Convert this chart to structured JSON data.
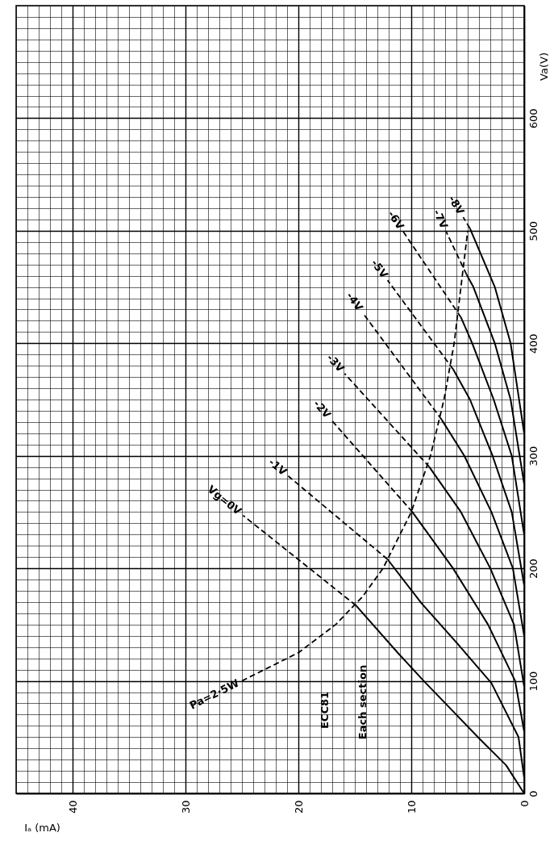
{
  "chart_data": {
    "type": "line",
    "xlabel": "Iₐ (mA)",
    "ylabel": "Va(V)",
    "xlim": [
      45,
      0
    ],
    "ylim": [
      0,
      700
    ],
    "yticks": [
      0,
      {
        "value": 10,
        "label": null
      },
      {
        "value": 20,
        "label": null
      },
      {
        "value": 30,
        "label": null
      },
      {
        "value": 40,
        "label": null
      },
      {
        "value": 50,
        "label": null
      },
      {
        "value": 60,
        "label": null
      },
      {
        "value": 70,
        "label": null
      },
      {
        "value": 80,
        "label": null
      },
      {
        "value": 90,
        "label": null
      },
      100,
      {
        "value": 110,
        "label": null
      },
      {
        "value": 120,
        "label": null
      },
      {
        "value": 130,
        "label": null
      },
      {
        "value": 140,
        "label": null
      },
      {
        "value": 150,
        "label": null
      },
      {
        "value": 160,
        "label": null
      },
      {
        "value": 170,
        "label": null
      },
      {
        "value": 180,
        "label": null
      },
      {
        "value": 190,
        "label": null
      },
      200,
      {
        "value": 210,
        "label": null
      },
      {
        "value": 220,
        "label": null
      },
      {
        "value": 230,
        "label": null
      },
      {
        "value": 240,
        "label": null
      },
      {
        "value": 250,
        "label": null
      },
      {
        "value": 260,
        "label": null
      },
      {
        "value": 270,
        "label": null
      },
      {
        "value": 280,
        "label": null
      },
      {
        "value": 290,
        "label": null
      },
      300,
      {
        "value": 310,
        "label": null
      },
      {
        "value": 320,
        "label": null
      },
      {
        "value": 330,
        "label": null
      },
      {
        "value": 340,
        "label": null
      },
      {
        "value": 350,
        "label": null
      },
      {
        "value": 360,
        "label": null
      },
      {
        "value": 370,
        "label": null
      },
      {
        "value": 380,
        "label": null
      },
      {
        "value": 390,
        "label": null
      },
      400,
      {
        "value": 410,
        "label": null
      },
      {
        "value": 420,
        "label": null
      },
      {
        "value": 430,
        "label": null
      },
      {
        "value": 440,
        "label": null
      },
      {
        "value": 450,
        "label": null
      },
      {
        "value": 460,
        "label": null
      },
      {
        "value": 470,
        "label": null
      },
      {
        "value": 480,
        "label": null
      },
      {
        "value": 490,
        "label": null
      },
      500,
      {
        "value": 510,
        "label": null
      },
      {
        "value": 520,
        "label": null
      },
      {
        "value": 530,
        "label": null
      },
      {
        "value": 540,
        "label": null
      },
      {
        "value": 550,
        "label": null
      },
      {
        "value": 560,
        "label": null
      },
      {
        "value": 570,
        "label": null
      },
      {
        "value": 580,
        "label": null
      },
      {
        "value": 590,
        "label": null
      },
      600,
      {
        "value": 610,
        "label": null
      },
      {
        "value": 620,
        "label": null
      },
      {
        "value": 630,
        "label": null
      },
      {
        "value": 640,
        "label": null
      },
      {
        "value": 650,
        "label": null
      },
      {
        "value": 660,
        "label": null
      },
      {
        "value": 670,
        "label": null
      },
      {
        "value": 680,
        "label": null
      },
      {
        "value": 690,
        "label": null
      },
      {
        "value": 700,
        "label": null
      }
    ],
    "xticks": [
      {
        "value": 45,
        "label": null
      },
      {
        "value": 44,
        "label": null
      },
      {
        "value": 43,
        "label": null
      },
      {
        "value": 42,
        "label": null
      },
      {
        "value": 41,
        "label": null
      },
      40,
      {
        "value": 39,
        "label": null
      },
      {
        "value": 38,
        "label": null
      },
      {
        "value": 37,
        "label": null
      },
      {
        "value": 36,
        "label": null
      },
      {
        "value": 35,
        "label": null
      },
      {
        "value": 34,
        "label": null
      },
      {
        "value": 33,
        "label": null
      },
      {
        "value": 32,
        "label": null
      },
      {
        "value": 31,
        "label": null
      },
      30,
      {
        "value": 29,
        "label": null
      },
      {
        "value": 28,
        "label": null
      },
      {
        "value": 27,
        "label": null
      },
      {
        "value": 26,
        "label": null
      },
      {
        "value": 25,
        "label": null
      },
      {
        "value": 24,
        "label": null
      },
      {
        "value": 23,
        "label": null
      },
      {
        "value": 22,
        "label": null
      },
      {
        "value": 21,
        "label": null
      },
      20,
      {
        "value": 19,
        "label": null
      },
      {
        "value": 18,
        "label": null
      },
      {
        "value": 17,
        "label": null
      },
      {
        "value": 16,
        "label": null
      },
      {
        "value": 15,
        "label": null
      },
      {
        "value": 14,
        "label": null
      },
      {
        "value": 13,
        "label": null
      },
      {
        "value": 12,
        "label": null
      },
      {
        "value": 11,
        "label": null
      },
      10,
      {
        "value": 9,
        "label": null
      },
      {
        "value": 8,
        "label": null
      },
      {
        "value": 7,
        "label": null
      },
      {
        "value": 6,
        "label": null
      },
      {
        "value": 5,
        "label": null
      },
      {
        "value": 4,
        "label": null
      },
      {
        "value": 3,
        "label": null
      },
      {
        "value": 2,
        "label": null
      },
      {
        "value": 1,
        "label": null
      },
      0
    ],
    "grid": true,
    "annotations": [
      "ECC81",
      "Each section"
    ],
    "series": [
      {
        "color": "#000000",
        "line_style": "solid",
        "x": [
          0,
          1.6,
          4.1,
          6.5,
          8.9,
          11.2,
          13.4,
          14.9
        ],
        "values": [
          0,
          25,
          50,
          75,
          100,
          125,
          150,
          167
        ]
      },
      {
        "name": "Vg=0V",
        "color": "#000000",
        "line_style": "dashed",
        "x": [
          14.9,
          24.9
        ],
        "values": [
          167,
          247
        ]
      },
      {
        "color": "#000000",
        "line_style": "solid",
        "x": [
          0,
          0.5,
          2.9,
          5.9,
          9.1,
          12.1
        ],
        "values": [
          14,
          50,
          98,
          133,
          169,
          208
        ]
      },
      {
        "name": "-1V",
        "color": "#000000",
        "line_style": "dashed",
        "x": [
          12.1,
          20.9
        ],
        "values": [
          208,
          282
        ]
      },
      {
        "color": "#000000",
        "line_style": "solid",
        "x": [
          0,
          0.8,
          3.2,
          6.3,
          9.9
        ],
        "values": [
          55,
          100,
          150,
          200,
          250
        ]
      },
      {
        "name": "-2V",
        "color": "#000000",
        "line_style": "dashed",
        "x": [
          9.9,
          17.1
        ],
        "values": [
          250,
          332
        ]
      },
      {
        "color": "#000000",
        "line_style": "solid",
        "x": [
          0,
          0.9,
          3.0,
          5.6,
          8.4
        ],
        "values": [
          95,
          150,
          200,
          250,
          290
        ]
      },
      {
        "name": "-3V",
        "color": "#000000",
        "line_style": "dashed",
        "x": [
          8.4,
          15.9
        ],
        "values": [
          290,
          373
        ]
      },
      {
        "color": "#000000",
        "line_style": "solid",
        "x": [
          0,
          1.0,
          2.9,
          5.3,
          7.3
        ],
        "values": [
          140,
          200,
          250,
          300,
          332
        ]
      },
      {
        "name": "-4V",
        "color": "#000000",
        "line_style": "dashed",
        "x": [
          7.3,
          14.3
        ],
        "values": [
          332,
          427
        ]
      },
      {
        "color": "#000000",
        "line_style": "solid",
        "x": [
          0,
          1.1,
          2.8,
          4.8,
          6.3
        ],
        "values": [
          185,
          250,
          300,
          350,
          377
        ]
      },
      {
        "name": "-5V",
        "color": "#000000",
        "line_style": "dashed",
        "x": [
          6.3,
          12.1
        ],
        "values": [
          377,
          456
        ]
      },
      {
        "color": "#000000",
        "line_style": "solid",
        "x": [
          0,
          1.1,
          2.7,
          4.6,
          5.6
        ],
        "values": [
          230,
          300,
          350,
          400,
          423
        ]
      },
      {
        "name": "-6V",
        "color": "#000000",
        "line_style": "dashed",
        "x": [
          5.6,
          10.7
        ],
        "values": [
          423,
          499
        ]
      },
      {
        "color": "#000000",
        "line_style": "solid",
        "x": [
          0,
          1.2,
          2.6,
          4.5,
          5.1
        ],
        "values": [
          275,
          350,
          400,
          450,
          461
        ]
      },
      {
        "name": "-7V",
        "color": "#000000",
        "line_style": "dashed",
        "x": [
          5.1,
          6.9
        ],
        "values": [
          461,
          499
        ]
      },
      {
        "color": "#000000",
        "line_style": "solid",
        "x": [
          0,
          1.2,
          2.6,
          4.8
        ],
        "values": [
          320,
          400,
          450,
          502
        ]
      },
      {
        "name": "-8V",
        "color": "#000000",
        "line_style": "dashed",
        "x": [
          4.8,
          5.4
        ],
        "values": [
          502,
          512
        ]
      },
      {
        "name": "Pa=2·5W",
        "color": "#000000",
        "line_style": "dashed",
        "x": [
          25,
          20,
          16.7,
          14.3,
          12.5,
          10,
          8.3,
          7.1,
          6.2,
          5.6,
          5
        ],
        "values": [
          100,
          125,
          150,
          175,
          200,
          250,
          300,
          350,
          400,
          450,
          500
        ]
      }
    ]
  }
}
